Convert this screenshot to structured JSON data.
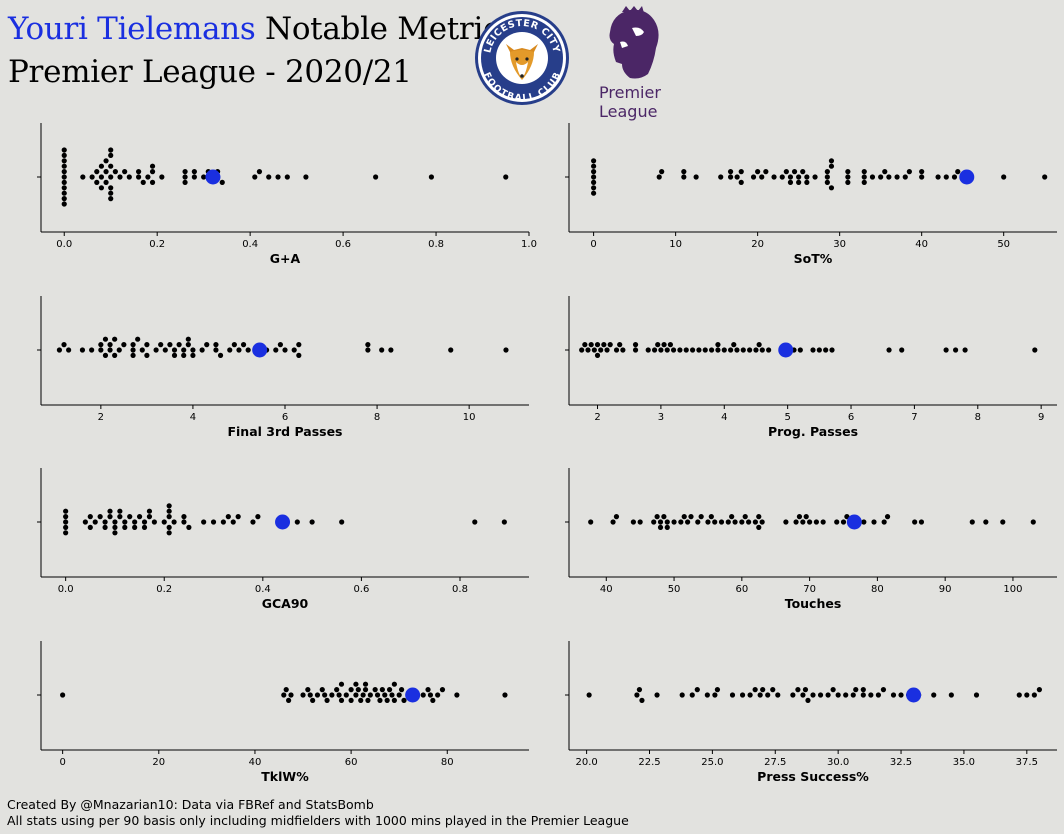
{
  "header": {
    "player_name": "Youri Tielemans",
    "title_suffix": " Notable Metrics",
    "subtitle": "Premier League - 2020/21"
  },
  "logos": {
    "club_crest_text_top": "LEICESTER CITY",
    "club_crest_text_bottom": "FOOTBALL CLUB",
    "league_logo_line1": "Premier",
    "league_logo_line2": "League"
  },
  "footer": {
    "line1": "Created By @Mnazarian10: Data via FBRef and StatsBomb",
    "line2": "All stats using per 90 basis only including midfielders with 1000 mins played in the Premier League"
  },
  "colors": {
    "background": "#e2e2df",
    "highlight": "#1a2fe0",
    "points": "#000000",
    "crest_blue": "#273e8a",
    "league_purple": "#4b2666"
  },
  "chart_data": [
    {
      "type": "scatter",
      "style": "swarm",
      "xlabel": "G+A",
      "xlim": [
        -0.05,
        1.0
      ],
      "ticks": [
        0.0,
        0.2,
        0.4,
        0.6,
        0.8,
        1.0
      ],
      "tick_labels": [
        "0.0",
        "0.2",
        "0.4",
        "0.6",
        "0.8",
        "1.0"
      ],
      "values": [
        0,
        0,
        0,
        0,
        0,
        0,
        0,
        0,
        0,
        0,
        0,
        0.04,
        0.06,
        0.07,
        0.07,
        0.08,
        0.08,
        0.08,
        0.09,
        0.09,
        0.09,
        0.1,
        0.1,
        0.1,
        0.1,
        0.1,
        0.1,
        0.1,
        0.11,
        0.12,
        0.13,
        0.14,
        0.16,
        0.16,
        0.17,
        0.18,
        0.19,
        0.19,
        0.19,
        0.21,
        0.26,
        0.26,
        0.26,
        0.28,
        0.28,
        0.3,
        0.31,
        0.33,
        0.33,
        0.34,
        0.41,
        0.42,
        0.44,
        0.46,
        0.48,
        0.52,
        0.67,
        0.79,
        0.95
      ],
      "highlight": 0.32
    },
    {
      "type": "scatter",
      "style": "swarm",
      "xlabel": "SoT%",
      "xlim": [
        -3,
        56.5
      ],
      "ticks": [
        0,
        10,
        20,
        30,
        40,
        50
      ],
      "tick_labels": [
        "0",
        "10",
        "20",
        "30",
        "40",
        "50"
      ],
      "values": [
        0,
        0,
        0,
        0,
        0,
        0,
        0,
        8,
        8.3,
        11,
        11,
        12.5,
        15.5,
        16.7,
        16.7,
        17.5,
        18,
        18,
        19.5,
        20,
        20.5,
        21,
        22,
        23,
        23.5,
        24,
        24,
        24.5,
        25,
        25,
        25.5,
        26,
        26,
        27,
        28.5,
        28.5,
        28.5,
        29,
        29,
        29,
        31,
        31,
        31,
        33,
        33,
        33,
        34,
        35,
        35.5,
        36,
        37,
        38,
        38.5,
        40,
        40,
        42,
        43,
        44,
        44.4,
        46,
        50,
        55
      ],
      "highlight": 45.5
    },
    {
      "type": "scatter",
      "style": "swarm",
      "xlabel": "Final 3rd Passes",
      "xlim": [
        0.7,
        11.3
      ],
      "ticks": [
        2,
        4,
        6,
        8,
        10
      ],
      "tick_labels": [
        "2",
        "4",
        "6",
        "8",
        "10"
      ],
      "values": [
        1.1,
        1.2,
        1.3,
        1.6,
        1.8,
        2,
        2,
        2.1,
        2.1,
        2.2,
        2.2,
        2.3,
        2.3,
        2.4,
        2.5,
        2.7,
        2.7,
        2.7,
        2.8,
        2.9,
        3,
        3,
        3.2,
        3.3,
        3.4,
        3.5,
        3.6,
        3.6,
        3.7,
        3.8,
        3.8,
        3.9,
        3.9,
        4,
        4,
        4.2,
        4.3,
        4.5,
        4.5,
        4.6,
        4.8,
        4.9,
        5,
        5.1,
        5.2,
        5.6,
        5.8,
        5.9,
        6,
        6.2,
        6.3,
        6.3,
        7.8,
        7.8,
        8.1,
        8.3,
        9.6,
        10.8
      ],
      "highlight": 5.45
    },
    {
      "type": "scatter",
      "style": "swarm",
      "xlabel": "Prog. Passes",
      "xlim": [
        1.55,
        9.25
      ],
      "ticks": [
        2,
        3,
        4,
        5,
        6,
        7,
        8,
        9
      ],
      "tick_labels": [
        "2",
        "3",
        "4",
        "5",
        "6",
        "7",
        "8",
        "9"
      ],
      "values": [
        1.75,
        1.8,
        1.85,
        1.9,
        1.95,
        2,
        2,
        2.05,
        2.1,
        2.15,
        2.2,
        2.3,
        2.35,
        2.4,
        2.6,
        2.6,
        2.8,
        2.9,
        2.95,
        3,
        3.05,
        3.1,
        3.15,
        3.2,
        3.3,
        3.4,
        3.5,
        3.6,
        3.7,
        3.8,
        3.9,
        3.9,
        4,
        4.1,
        4.15,
        4.2,
        4.3,
        4.4,
        4.5,
        4.55,
        4.6,
        4.7,
        5,
        5.1,
        5.2,
        5.4,
        5.5,
        5.6,
        5.7,
        6.6,
        6.8,
        7.5,
        7.65,
        7.8,
        8.9
      ],
      "highlight": 4.97
    },
    {
      "type": "scatter",
      "style": "swarm",
      "xlabel": "GCA90",
      "xlim": [
        -0.05,
        0.94
      ],
      "ticks": [
        0.0,
        0.2,
        0.4,
        0.6,
        0.8
      ],
      "tick_labels": [
        "0.0",
        "0.2",
        "0.4",
        "0.6",
        "0.8"
      ],
      "values": [
        0,
        0,
        0,
        0,
        0,
        0.04,
        0.05,
        0.05,
        0.06,
        0.07,
        0.08,
        0.08,
        0.09,
        0.09,
        0.1,
        0.1,
        0.1,
        0.11,
        0.11,
        0.12,
        0.12,
        0.13,
        0.14,
        0.14,
        0.15,
        0.16,
        0.16,
        0.17,
        0.17,
        0.18,
        0.2,
        0.21,
        0.21,
        0.21,
        0.21,
        0.21,
        0.22,
        0.24,
        0.24,
        0.25,
        0.28,
        0.3,
        0.32,
        0.33,
        0.34,
        0.35,
        0.38,
        0.39,
        0.47,
        0.5,
        0.56,
        0.83,
        0.89
      ],
      "highlight": 0.44
    },
    {
      "type": "scatter",
      "style": "swarm",
      "xlabel": "Touches",
      "xlim": [
        34.5,
        106.5
      ],
      "ticks": [
        40,
        50,
        60,
        70,
        80,
        90,
        100
      ],
      "tick_labels": [
        "40",
        "50",
        "60",
        "70",
        "80",
        "90",
        "100"
      ],
      "values": [
        37.7,
        41,
        41.5,
        44,
        45,
        47,
        47.5,
        48,
        48,
        48.5,
        49,
        49,
        50,
        51,
        51.5,
        52,
        52.5,
        53.5,
        54,
        55,
        55.5,
        56,
        57,
        58,
        58.5,
        59,
        60,
        60.5,
        61,
        62,
        62.5,
        62.5,
        63,
        66.5,
        68,
        68.5,
        69,
        69.5,
        70,
        71,
        72,
        74,
        75,
        75.5,
        77,
        78,
        79.5,
        81,
        81.5,
        85.5,
        86.5,
        94,
        96,
        98.5,
        103
      ],
      "highlight": 76.6
    },
    {
      "type": "scatter",
      "style": "swarm",
      "xlabel": "TklW%",
      "xlim": [
        -4.5,
        97
      ],
      "ticks": [
        0,
        20,
        40,
        60,
        80
      ],
      "tick_labels": [
        "0",
        "20",
        "40",
        "60",
        "80"
      ],
      "values": [
        0,
        46,
        46.5,
        47,
        47.5,
        50,
        51,
        51.5,
        52,
        53,
        54,
        54.5,
        55,
        56,
        57,
        57.5,
        58,
        58,
        59,
        60,
        60,
        61,
        61,
        61.5,
        62,
        62.5,
        63,
        63,
        63.5,
        64,
        65,
        65.5,
        66,
        66.5,
        67,
        67.5,
        68,
        68.5,
        69,
        69,
        70,
        70.5,
        71,
        72,
        75,
        76,
        76.5,
        77,
        78,
        79,
        82,
        92
      ],
      "highlight": 72.8
    },
    {
      "type": "scatter",
      "style": "swarm",
      "xlabel": "Press Success%",
      "xlim": [
        19.3,
        38.7
      ],
      "ticks": [
        20.0,
        22.5,
        25.0,
        27.5,
        30.0,
        32.5,
        35.0,
        37.5
      ],
      "tick_labels": [
        "20.0",
        "22.5",
        "25.0",
        "27.5",
        "30.0",
        "32.5",
        "35.0",
        "37.5"
      ],
      "values": [
        20.1,
        22,
        22.1,
        22.2,
        22.8,
        23.8,
        24.2,
        24.4,
        24.8,
        25.1,
        25.2,
        25.8,
        26.2,
        26.5,
        26.7,
        26.9,
        27,
        27.2,
        27.4,
        27.6,
        28.2,
        28.4,
        28.6,
        28.7,
        28.8,
        29,
        29.3,
        29.6,
        29.8,
        30,
        30.3,
        30.6,
        30.7,
        31,
        31,
        31.3,
        31.6,
        31.8,
        32.2,
        32.5,
        32.8,
        33.2,
        33.8,
        34.5,
        35.5,
        37.2,
        37.5,
        37.8,
        38
      ],
      "highlight": 33.0
    }
  ]
}
